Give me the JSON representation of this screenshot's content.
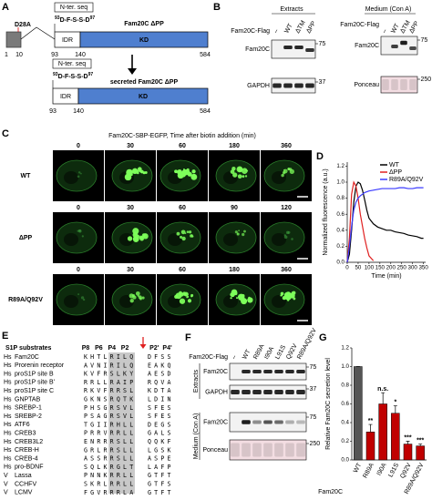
{
  "panel_a": {
    "letter": "A",
    "mutation": "D28A",
    "full": {
      "nter_label": "N-ter. seq",
      "seq_start": "93",
      "seq": "D-F-S-S-D",
      "seq_end": "97",
      "name": "Fam20C ΔPP",
      "idr": "IDR",
      "kd": "KD",
      "positions": [
        1,
        10,
        93,
        140,
        584
      ]
    },
    "secreted": {
      "nter_label": "N-ter. seq",
      "seq_start": "93",
      "seq": "D-F-S-S-D",
      "seq_end": "97",
      "name": "secreted Fam20C ΔPP",
      "idr": "IDR",
      "kd": "KD",
      "positions": [
        93,
        140,
        584
      ]
    }
  },
  "panel_b": {
    "letter": "B",
    "extracts": {
      "heading": "Extracts",
      "lane_title": "Fam20C-Flag",
      "lanes": [
        "–",
        "WT",
        "ΔTM",
        "ΔPP"
      ],
      "blots": [
        {
          "label": "Fam20C",
          "marker": 75
        },
        {
          "label": "GAPDH",
          "marker": 37
        }
      ]
    },
    "medium": {
      "heading": "Medium (Con A)",
      "lane_title": "Fam20C-Flag",
      "lanes": [
        "–",
        "WT",
        "ΔTM",
        "ΔPP"
      ],
      "blots": [
        {
          "label": "Fam20C",
          "marker": 75
        },
        {
          "label": "Ponceau",
          "marker": 250
        }
      ]
    }
  },
  "panel_c": {
    "letter": "C",
    "title": "Fam20C-SBP-EGFP, Time after biotin addition (min)",
    "rows": [
      {
        "label": "WT",
        "times": [
          0,
          30,
          60,
          180,
          360
        ]
      },
      {
        "label": "ΔPP",
        "times": [
          0,
          30,
          60,
          90,
          120
        ]
      },
      {
        "label": "R89A/Q92V",
        "times": [
          0,
          30,
          60,
          180,
          360
        ]
      }
    ]
  },
  "panel_e": {
    "letter": "E",
    "heading": "S1P substrates",
    "columns": [
      "P8",
      "P6",
      "P4",
      "P2",
      "P2'",
      "P4'"
    ],
    "rows": [
      [
        "Hs",
        "Fam20C",
        "KHTLRILQ",
        "DFSS"
      ],
      [
        "Hs",
        "Prorenin receptor",
        "AVNIRILQ",
        "EAKQ"
      ],
      [
        "Hs",
        "proS1P site B",
        "KVFRSLKY",
        "AESD"
      ],
      [
        "Hs",
        "proS1P site B'",
        "RRLLRAIP",
        "RQVA"
      ],
      [
        "Hs",
        "proS1P site C",
        "RKVFRRSL",
        "KDTA"
      ],
      [
        "Hs",
        "GNPTAB",
        "GKNSRQTK",
        "LDIN"
      ],
      [
        "Hs",
        "SREBP-1",
        "PHSGRSVL",
        "SFES"
      ],
      [
        "Hs",
        "SREBP-2",
        "PSAGRSVL",
        "SFES"
      ],
      [
        "Hs",
        "ATF6",
        "TGIIRHLL",
        "DEGS"
      ],
      [
        "Hs",
        "CREB3",
        "PRRVRRLL",
        "GALS"
      ],
      [
        "Hs",
        "CREB3L2",
        "ENRRRSLL",
        "QQKF"
      ],
      [
        "Hs",
        "CREB-H",
        "GRLRRSLL",
        "LGSK"
      ],
      [
        "Hs",
        "CREB-4",
        "ASSRRSLL",
        "ASPE"
      ],
      [
        "Hs",
        "pro-BDNF",
        "SQLKRGLT",
        "LAFP"
      ],
      [
        "V",
        "Lassa",
        "PNNKRRLL",
        "GTFT"
      ],
      [
        "V",
        "CCHFV",
        "SKRLRRLL",
        "GTFS"
      ],
      [
        "V",
        "LCMV",
        "FGVRRRLA",
        "GTFT"
      ]
    ]
  },
  "panel_f": {
    "letter": "F",
    "lane_title": "Fam20C-Flag",
    "lanes": [
      "–",
      "WT",
      "R89A",
      "I90A",
      "L91S",
      "Q92V",
      "R89A/Q92V"
    ],
    "groups": [
      {
        "label": "Extracts",
        "blots": [
          {
            "label": "Fam20C",
            "marker": 75
          },
          {
            "label": "GAPDH",
            "marker": 37
          }
        ]
      },
      {
        "label": "Medium (Con A)",
        "blots": [
          {
            "label": "Fam20C",
            "marker": 75
          },
          {
            "label": "Ponceau",
            "marker": 250
          }
        ]
      }
    ]
  },
  "chart_data": [
    {
      "type": "line",
      "panel": "D",
      "ylabel": "Normalized fluorescence (a.u.)",
      "xlabel": "Time (min)",
      "x": [
        0,
        10,
        20,
        30,
        40,
        50,
        60,
        70,
        80,
        90,
        100,
        120,
        140,
        160,
        180,
        200,
        220,
        240,
        260,
        280,
        300,
        320,
        340,
        350
      ],
      "series": [
        {
          "name": "WT",
          "color": "#000000",
          "values": [
            0,
            0.1,
            0.4,
            0.75,
            0.95,
            1.0,
            0.98,
            0.9,
            0.78,
            0.65,
            0.55,
            0.48,
            0.44,
            0.42,
            0.4,
            0.4,
            0.38,
            0.37,
            0.36,
            0.34,
            0.33,
            0.32,
            0.3,
            0.3
          ]
        },
        {
          "name": "ΔPP",
          "color": "#e02020",
          "values": [
            0,
            0.3,
            0.85,
            1.0,
            0.95,
            0.8,
            0.6,
            0.45,
            0.3,
            0.18,
            0.08,
            0.02,
            null,
            null,
            null,
            null,
            null,
            null,
            null,
            null,
            null,
            null,
            null,
            null
          ]
        },
        {
          "name": "R89A/Q92V",
          "color": "#3a3aff",
          "values": [
            0,
            0.2,
            0.45,
            0.65,
            0.75,
            0.8,
            0.83,
            0.85,
            0.87,
            0.88,
            0.89,
            0.9,
            0.91,
            0.92,
            0.92,
            0.92,
            0.92,
            0.93,
            0.93,
            0.92,
            0.92,
            0.93,
            0.93,
            0.93
          ]
        }
      ],
      "xlim": [
        0,
        360
      ],
      "xticks": [
        0,
        50,
        100,
        150,
        200,
        250,
        300,
        350
      ],
      "ylim": [
        0,
        1.25
      ],
      "yticks": [
        {
          "value": 0,
          "label": "0.0"
        },
        0.2,
        0.4,
        0.6,
        0.8,
        {
          "value": 1,
          "label": "1.0"
        },
        1.2
      ],
      "legend": "upper right"
    },
    {
      "type": "bar",
      "panel": "G",
      "ylabel": "Relative Fam20C secretion level",
      "xlabel": "Fam20C",
      "categories": [
        "WT",
        "R89A",
        "I90A",
        "L91S",
        "Q92V",
        "R89A/Q92V"
      ],
      "values": [
        1.0,
        0.3,
        0.6,
        0.5,
        0.17,
        0.15
      ],
      "errors": [
        0,
        0.08,
        0.12,
        0.08,
        0.03,
        0.02
      ],
      "colors": [
        "#555555",
        "#c00000",
        "#c00000",
        "#c00000",
        "#c00000",
        "#c00000"
      ],
      "annotations": [
        null,
        "**",
        "n.s.",
        "*",
        "***",
        "***"
      ],
      "ylim": [
        0,
        1.2
      ],
      "yticks": [
        {
          "value": 0,
          "label": "0.0"
        },
        0.2,
        0.4,
        0.6,
        0.8,
        {
          "value": 1,
          "label": "1.0"
        },
        1.2
      ]
    }
  ]
}
